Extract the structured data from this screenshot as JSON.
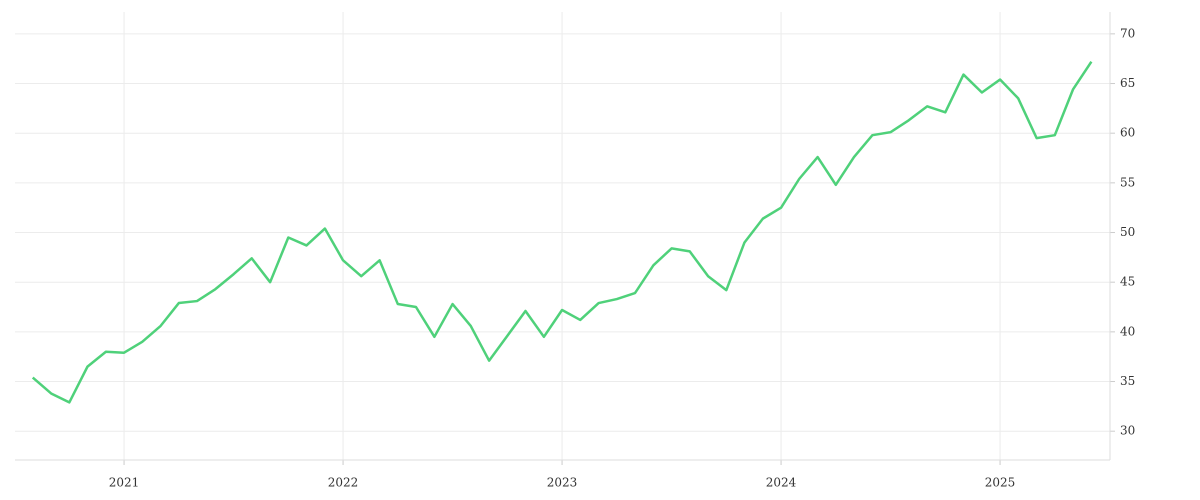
{
  "chart_data": {
    "type": "line",
    "x": [
      2020.583,
      2020.667,
      2020.75,
      2020.833,
      2020.917,
      2021.0,
      2021.083,
      2021.167,
      2021.25,
      2021.333,
      2021.417,
      2021.5,
      2021.583,
      2021.667,
      2021.75,
      2021.833,
      2021.917,
      2022.0,
      2022.083,
      2022.167,
      2022.25,
      2022.333,
      2022.417,
      2022.5,
      2022.583,
      2022.667,
      2022.75,
      2022.833,
      2022.917,
      2023.0,
      2023.083,
      2023.167,
      2023.25,
      2023.333,
      2023.417,
      2023.5,
      2023.583,
      2023.667,
      2023.75,
      2023.833,
      2023.917,
      2024.0,
      2024.083,
      2024.167,
      2024.25,
      2024.333,
      2024.417,
      2024.5,
      2024.583,
      2024.667,
      2024.75,
      2024.833,
      2024.917,
      2025.0,
      2025.083,
      2025.167,
      2025.25,
      2025.333,
      2025.417
    ],
    "series": [
      {
        "color": "#4fd17a",
        "values": [
          35.4,
          33.8,
          32.9,
          36.5,
          38.0,
          37.9,
          39.0,
          40.6,
          42.9,
          43.1,
          44.3,
          45.8,
          47.4,
          45.0,
          49.5,
          48.7,
          50.4,
          47.2,
          45.6,
          47.2,
          42.8,
          42.5,
          39.5,
          42.8,
          40.6,
          37.1,
          39.6,
          42.1,
          39.5,
          42.2,
          41.2,
          42.9,
          43.3,
          43.9,
          46.7,
          48.4,
          48.1,
          45.6,
          44.2,
          49.0,
          51.4,
          52.5,
          55.4,
          57.6,
          54.8,
          57.6,
          59.8,
          60.1,
          61.3,
          62.7,
          62.1,
          65.9,
          64.1,
          65.4,
          63.5,
          59.5,
          59.8,
          64.4,
          67.2
        ]
      }
    ],
    "xlim": [
      2020.502,
      2025.502
    ],
    "xticks": [
      2021,
      2022,
      2023,
      2024,
      2025
    ],
    "ylim": [
      27.1,
      72.2
    ],
    "yticks": [
      30,
      35,
      40,
      45,
      50,
      55,
      60,
      65,
      70
    ],
    "grid": true
  }
}
